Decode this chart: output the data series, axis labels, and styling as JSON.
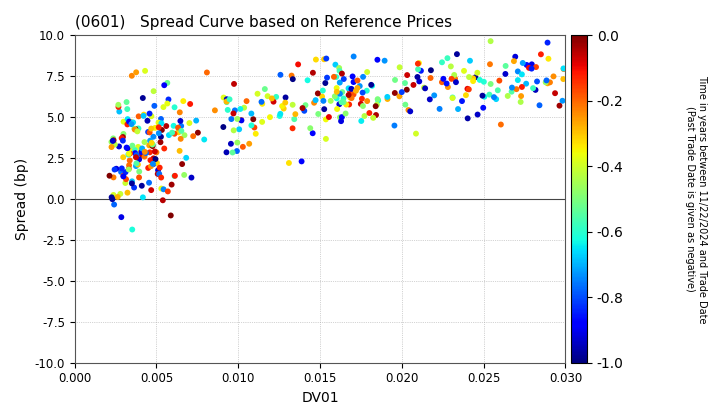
{
  "title": "(0601)   Spread Curve based on Reference Prices",
  "xlabel": "DV01",
  "ylabel": "Spread (bp)",
  "colorbar_label": "Time in years between 11/22/2024 and Trade Date\n(Past Trade Date is given as negative)",
  "xlim": [
    0.0,
    0.03
  ],
  "ylim": [
    -10.0,
    10.0
  ],
  "xticks": [
    0.0,
    0.005,
    0.01,
    0.015,
    0.02,
    0.025,
    0.03
  ],
  "yticks": [
    -10.0,
    -7.5,
    -5.0,
    -2.5,
    0.0,
    2.5,
    5.0,
    7.5,
    10.0
  ],
  "clim": [
    -1.0,
    0.0
  ],
  "cticks": [
    0.0,
    -0.2,
    -0.4,
    -0.6,
    -0.8,
    -1.0
  ],
  "cmap": "jet_r",
  "marker_size": 18,
  "background_color": "#ffffff",
  "grid_color": "#aaaaaa",
  "seed": 42
}
